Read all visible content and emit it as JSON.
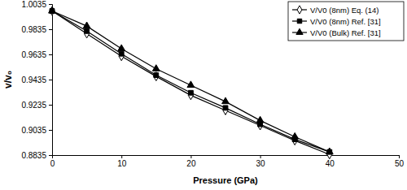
{
  "chart_data": {
    "type": "line",
    "x_label": "Pressure (GPa)",
    "y_label": "v/v₀",
    "x": [
      0,
      5,
      10,
      15,
      20,
      25,
      30,
      35,
      40
    ],
    "series": [
      {
        "name": "V/V0 (8nm) Eq. (14)",
        "color": "#000000",
        "marker": "diamond-open",
        "line_style": "solid",
        "values": [
          0.998,
          0.98,
          0.962,
          0.946,
          0.931,
          0.919,
          0.907,
          0.895,
          0.884
        ]
      },
      {
        "name": "V/V0 (8nm) Ref. [31]",
        "color": "#000000",
        "marker": "square",
        "line_style": "solid",
        "values": [
          0.998,
          0.982,
          0.964,
          0.947,
          0.933,
          0.921,
          0.908,
          0.896,
          0.886
        ]
      },
      {
        "name": "V/V0 (Bulk) Ref. [31]",
        "color": "#000000",
        "marker": "triangle",
        "line_style": "solid",
        "values": [
          0.998,
          0.986,
          0.968,
          0.952,
          0.939,
          0.926,
          0.911,
          0.898,
          0.886
        ]
      }
    ],
    "xlim": [
      0,
      50
    ],
    "xticks": [
      0,
      10,
      20,
      30,
      40,
      50
    ],
    "ylim": [
      0.8835,
      1.0035
    ],
    "yticks": [
      0.8835,
      0.9035,
      0.9235,
      0.9435,
      0.9635,
      0.9835,
      1.0035
    ],
    "grid": false,
    "legend": "upper right"
  }
}
